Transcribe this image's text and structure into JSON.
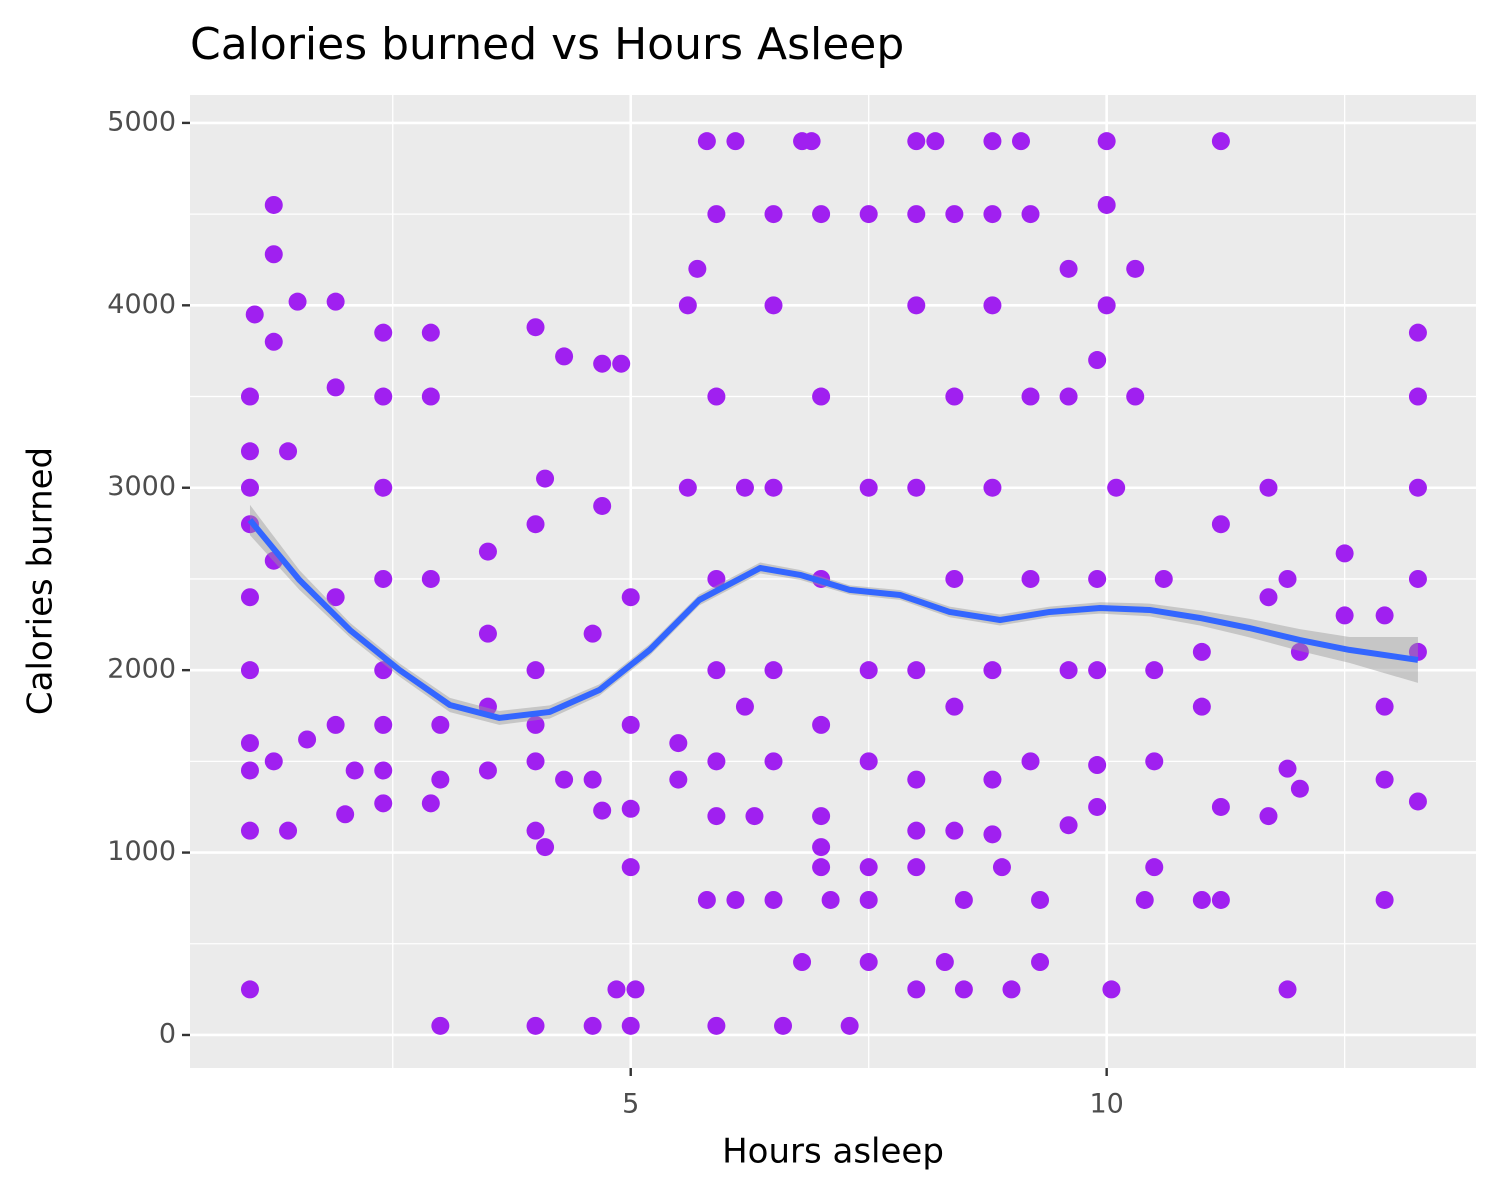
{
  "chart_data": {
    "type": "scatter",
    "title": "Calories burned vs Hours Asleep",
    "x_label": "Hours asleep",
    "y_label": "Calories burned",
    "color": "#a020f0",
    "x": [
      1.0,
      1.0,
      1.0,
      1.0,
      1.0,
      1.0,
      1.0,
      1.0,
      1.0,
      1.0,
      1.05,
      1.25,
      1.25,
      1.25,
      1.25,
      1.25,
      1.4,
      1.4,
      1.5,
      1.6,
      1.9,
      1.9,
      1.9,
      1.9,
      2.0,
      2.1,
      2.4,
      2.4,
      2.4,
      2.4,
      2.4,
      2.4,
      2.4,
      2.4,
      2.9,
      2.9,
      2.9,
      2.9,
      3.0,
      3.0,
      3.0,
      3.5,
      3.5,
      3.5,
      3.5,
      4.0,
      4.0,
      4.0,
      4.0,
      4.0,
      4.0,
      4.0,
      4.1,
      4.1,
      4.3,
      4.3,
      4.6,
      4.6,
      4.6,
      4.7,
      4.7,
      4.7,
      5.0,
      5.0,
      5.0,
      4.85,
      5.0,
      5.0,
      4.9,
      5.05,
      5.5,
      5.5,
      5.6,
      5.6,
      5.7,
      5.8,
      5.9,
      5.9,
      5.9,
      5.9,
      5.9,
      5.9,
      5.8,
      5.9,
      6.1,
      6.1,
      6.2,
      6.2,
      6.3,
      6.5,
      6.5,
      6.5,
      6.5,
      6.5,
      6.5,
      6.6,
      6.8,
      6.8,
      6.9,
      7.0,
      7.0,
      7.0,
      7.0,
      7.0,
      7.0,
      7.1,
      7.0,
      7.3,
      7.5,
      7.5,
      7.5,
      7.5,
      7.5,
      7.5,
      7.5,
      8.0,
      8.0,
      8.0,
      8.0,
      8.0,
      8.0,
      8.0,
      8.0,
      8.0,
      8.2,
      8.3,
      8.4,
      8.4,
      8.4,
      8.4,
      8.4,
      8.5,
      8.5,
      8.8,
      8.8,
      8.8,
      8.8,
      8.8,
      8.8,
      8.8,
      8.9,
      9.0,
      9.1,
      9.2,
      9.2,
      9.2,
      9.2,
      9.3,
      9.3,
      9.6,
      9.6,
      9.6,
      9.6,
      9.9,
      9.9,
      9.9,
      9.9,
      9.9,
      10.0,
      10.05,
      10.0,
      10.0,
      10.1,
      10.3,
      10.3,
      10.5,
      10.5,
      10.5,
      10.4,
      10.6,
      11.0,
      11.0,
      11.0,
      11.2,
      11.2,
      11.2,
      11.2,
      11.7,
      11.7,
      11.7,
      11.9,
      11.9,
      11.9,
      12.03,
      12.03,
      12.5,
      12.5,
      12.92,
      12.92,
      12.92,
      12.92,
      13.27,
      13.27,
      13.27,
      13.27,
      13.27,
      13.27
    ],
    "values": [
      250,
      1120,
      1450,
      1600,
      2000,
      2400,
      2800,
      3000,
      3200,
      3500,
      3950,
      4550,
      4280,
      3800,
      2600,
      1500,
      1120,
      3200,
      4020,
      1620,
      4020,
      3550,
      2400,
      1700,
      1210,
      1450,
      3850,
      3500,
      3000,
      2500,
      2000,
      1700,
      1270,
      1450,
      3850,
      3500,
      2500,
      1270,
      1400,
      1700,
      50,
      2650,
      2200,
      1450,
      1800,
      50,
      1500,
      1700,
      2000,
      2800,
      3880,
      1120,
      3050,
      1030,
      3720,
      1400,
      50,
      1400,
      2200,
      3680,
      1230,
      2900,
      50,
      920,
      1240,
      250,
      1700,
      2400,
      3680,
      250,
      1400,
      1600,
      3000,
      4000,
      4200,
      4900,
      4500,
      3500,
      2500,
      2000,
      1500,
      1200,
      740,
      50,
      4900,
      740,
      3000,
      1800,
      1200,
      4500,
      4000,
      3000,
      2000,
      1500,
      740,
      50,
      400,
      4900,
      4900,
      4500,
      3500,
      2500,
      1700,
      1200,
      920,
      740,
      1030,
      50,
      400,
      4500,
      3000,
      2000,
      1500,
      920,
      740,
      4900,
      4500,
      4000,
      3000,
      2000,
      1400,
      1120,
      920,
      250,
      4900,
      400,
      4500,
      3500,
      2500,
      1800,
      1120,
      740,
      250,
      4900,
      4500,
      4000,
      3000,
      2000,
      1400,
      1100,
      920,
      250,
      4900,
      4500,
      3500,
      2500,
      1500,
      740,
      400,
      4200,
      3500,
      2000,
      1150,
      3700,
      2500,
      2000,
      1250,
      1480,
      4900,
      250,
      4550,
      4000,
      3000,
      4200,
      3500,
      2000,
      1500,
      920,
      740,
      2500,
      1800,
      2100,
      740,
      4900,
      2800,
      1250,
      740,
      3000,
      2400,
      1200,
      250,
      2500,
      1460,
      2100,
      1350,
      2640,
      2300,
      2300,
      1800,
      740,
      1400,
      3850,
      3500,
      3000,
      2500,
      2100,
      1280
    ],
    "smooth": {
      "color": "#3366ff",
      "band_color": "#999999",
      "x": [
        1.0,
        1.52,
        2.05,
        2.57,
        3.1,
        3.62,
        4.15,
        4.67,
        5.2,
        5.72,
        6.36,
        6.78,
        7.3,
        7.83,
        8.35,
        8.88,
        9.4,
        9.93,
        10.45,
        10.98,
        11.5,
        12.03,
        12.55,
        13.27
      ],
      "values": [
        2823,
        2494,
        2220,
        2001,
        1809,
        1738,
        1771,
        1891,
        2111,
        2385,
        2560,
        2522,
        2440,
        2412,
        2319,
        2275,
        2319,
        2341,
        2330,
        2286,
        2231,
        2165,
        2111,
        2056
      ],
      "lower": [
        2740,
        2440,
        2180,
        1965,
        1770,
        1700,
        1735,
        1860,
        2080,
        2355,
        2530,
        2495,
        2415,
        2385,
        2290,
        2245,
        2290,
        2310,
        2295,
        2245,
        2180,
        2105,
        2040,
        1930
      ],
      "upper": [
        2906,
        2548,
        2260,
        2037,
        1848,
        1776,
        1807,
        1922,
        2142,
        2415,
        2590,
        2549,
        2465,
        2439,
        2348,
        2305,
        2348,
        2372,
        2365,
        2327,
        2282,
        2225,
        2182,
        2182
      ]
    },
    "xlim": [
      0.37,
      13.88
    ],
    "ylim": [
      -181,
      5153
    ],
    "xticks": [
      5,
      10
    ],
    "yticks": [
      0,
      1000,
      2000,
      3000,
      4000,
      5000
    ],
    "x_minor_grid": [
      2.5,
      7.5,
      12.5
    ],
    "y_minor_grid": [
      500,
      1500,
      2500,
      3500,
      4500
    ],
    "grid": true
  }
}
